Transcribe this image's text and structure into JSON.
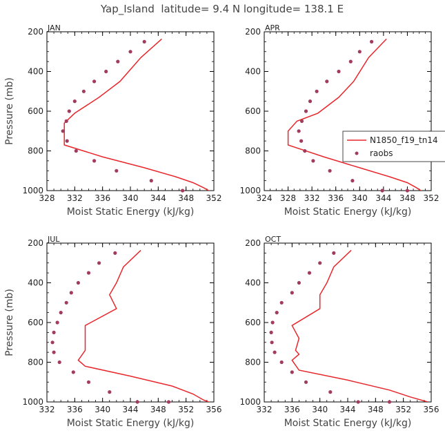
{
  "figure_title": "Yap_Island  latitude= 9.4 N longitude= 138.1 E",
  "legend": {
    "model_label": "N1850_f19_tn14",
    "obs_label": "raobs"
  },
  "colors": {
    "model": "#e8262b",
    "obs": "#a23c5c",
    "axis": "#000000"
  },
  "chart_data": [
    {
      "type": "line",
      "panel_title": "JAN",
      "xlabel": "Moist Static Energy (kJ/kg)",
      "ylabel": "Pressure (mb)",
      "xlim": [
        328,
        352
      ],
      "ylim": [
        1000,
        200
      ],
      "xticks": [
        328,
        332,
        336,
        340,
        344,
        348,
        352
      ],
      "yticks": [
        200,
        400,
        600,
        800,
        1000
      ],
      "series": [
        {
          "name": "N1850_f19_tn14",
          "style": "line",
          "x": [
            344.5,
            341.5,
            338.5,
            335.5,
            332,
            330.5,
            330.5,
            330.5,
            336,
            342,
            346.5,
            349,
            350.5,
            351.5
          ],
          "p": [
            236,
            330,
            450,
            530,
            610,
            660,
            720,
            770,
            830,
            885,
            930,
            960,
            985,
            1005
          ]
        },
        {
          "name": "raobs",
          "style": "markers",
          "x": [
            342,
            340,
            338.2,
            336.5,
            334.8,
            333.3,
            332,
            331.2,
            330.8,
            330.3,
            330.9,
            332.2,
            334.8,
            338,
            343,
            347.5
          ],
          "p": [
            250,
            300,
            350,
            400,
            450,
            500,
            550,
            600,
            650,
            700,
            750,
            800,
            850,
            900,
            950,
            1000
          ]
        }
      ]
    },
    {
      "type": "line",
      "panel_title": "APR",
      "xlabel": "Moist Static Energy (kJ/kg)",
      "ylabel": "",
      "xlim": [
        324,
        352
      ],
      "ylim": [
        1000,
        200
      ],
      "xticks": [
        324,
        328,
        332,
        336,
        340,
        344,
        348,
        352
      ],
      "yticks": [
        200,
        400,
        600,
        800,
        1000
      ],
      "series": [
        {
          "name": "N1850_f19_tn14",
          "style": "line",
          "x": [
            344.5,
            341.5,
            339,
            336.5,
            333,
            329.5,
            328,
            328,
            334,
            340,
            345,
            348,
            349.5,
            350.5
          ],
          "p": [
            236,
            330,
            450,
            530,
            610,
            650,
            700,
            770,
            830,
            885,
            930,
            960,
            985,
            1005
          ]
        },
        {
          "name": "raobs",
          "style": "markers",
          "x": [
            342,
            340,
            338.5,
            336.5,
            334.5,
            332.8,
            331.7,
            331,
            330.3,
            329.8,
            330.2,
            330.8,
            332.2,
            335,
            338.8,
            343.8,
            348
          ],
          "p": [
            250,
            300,
            350,
            400,
            450,
            500,
            550,
            600,
            650,
            700,
            750,
            800,
            850,
            900,
            950,
            1000,
            1000
          ]
        }
      ]
    },
    {
      "type": "line",
      "panel_title": "JUL",
      "xlabel": "Moist Static Energy (kJ/kg)",
      "ylabel": "Pressure (mb)",
      "xlim": [
        332,
        356
      ],
      "ylim": [
        1000,
        200
      ],
      "xticks": [
        332,
        336,
        340,
        344,
        348,
        352,
        356
      ],
      "yticks": [
        200,
        400,
        600,
        800,
        1000
      ],
      "series": [
        {
          "name": "N1850_f19_tn14",
          "style": "line",
          "x": [
            345.5,
            343,
            342,
            341,
            342,
            337.5,
            337.5,
            337.5,
            336.5,
            337.5,
            344,
            350,
            353,
            354.5,
            356
          ],
          "p": [
            236,
            320,
            400,
            460,
            530,
            615,
            700,
            740,
            790,
            820,
            870,
            920,
            960,
            990,
            1010
          ]
        },
        {
          "name": "raobs",
          "style": "markers",
          "x": [
            341.8,
            339.5,
            338,
            336.5,
            335.5,
            334.8,
            334,
            333.5,
            333,
            332.8,
            333,
            333.8,
            335.8,
            338,
            341,
            345,
            349.5
          ],
          "p": [
            250,
            300,
            350,
            400,
            450,
            500,
            550,
            600,
            650,
            700,
            750,
            800,
            850,
            900,
            950,
            1000,
            1000
          ]
        }
      ]
    },
    {
      "type": "line",
      "panel_title": "OCT",
      "xlabel": "Moist Static Energy (kJ/kg)",
      "ylabel": "",
      "xlim": [
        332,
        356
      ],
      "ylim": [
        1000,
        200
      ],
      "xticks": [
        332,
        336,
        340,
        344,
        348,
        352,
        356
      ],
      "yticks": [
        200,
        400,
        600,
        800,
        1000
      ],
      "series": [
        {
          "name": "N1850_f19_tn14",
          "style": "line",
          "x": [
            344.5,
            342,
            341,
            340,
            340,
            336,
            337,
            336.5,
            337,
            336,
            337,
            344,
            350,
            353,
            355.5
          ],
          "p": [
            236,
            320,
            400,
            460,
            530,
            615,
            680,
            740,
            760,
            790,
            840,
            890,
            940,
            975,
            1000
          ]
        },
        {
          "name": "raobs",
          "style": "markers",
          "x": [
            342,
            340,
            338.5,
            337,
            336,
            334.5,
            333.8,
            333.2,
            333,
            333.1,
            333.5,
            334.5,
            336,
            338,
            341.5,
            345.5,
            350
          ],
          "p": [
            250,
            300,
            350,
            400,
            450,
            500,
            550,
            600,
            650,
            700,
            750,
            800,
            850,
            900,
            950,
            1000,
            1000
          ]
        }
      ]
    }
  ]
}
